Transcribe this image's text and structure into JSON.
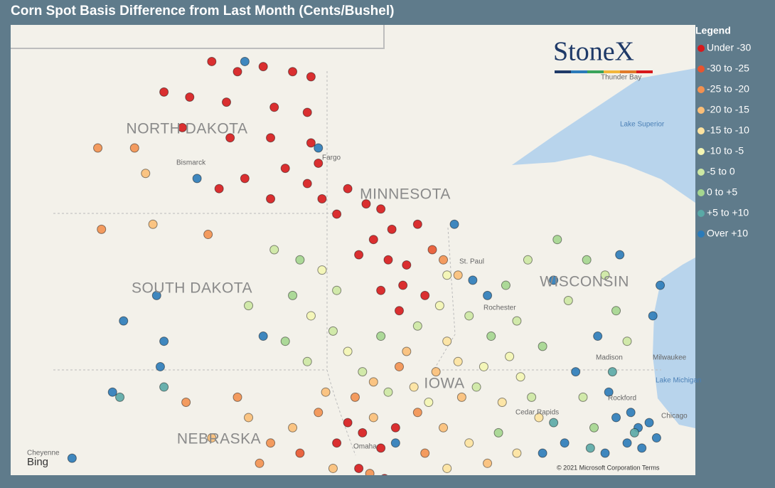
{
  "title": "Corn Spot Basis Difference from Last Month (Cents/Bushel)",
  "legend": {
    "title": "Legend",
    "items": [
      {
        "label": "Under -30",
        "color": "#d7191c"
      },
      {
        "label": "-30 to -25",
        "color": "#e8552f"
      },
      {
        "label": "-25 to -20",
        "color": "#f39150"
      },
      {
        "label": "-20 to -15",
        "color": "#fbbf78"
      },
      {
        "label": "-15 to -10",
        "color": "#fde3a0"
      },
      {
        "label": "-10 to -5",
        "color": "#f4f6b4"
      },
      {
        "label": "-5 to 0",
        "color": "#cde8a3"
      },
      {
        "label": "0 to +5",
        "color": "#a4d68f"
      },
      {
        "label": "+5 to +10",
        "color": "#5aa9a6"
      },
      {
        "label": "Over +10",
        "color": "#2b7bb9"
      }
    ]
  },
  "map": {
    "states": [
      "NORTH DAKOTA",
      "SOUTH DAKOTA",
      "MINNESOTA",
      "WISCONSIN",
      "NEBRASKA",
      "IOWA"
    ],
    "cities": [
      "Bismarck",
      "Fargo",
      "Thunder Bay",
      "St. Paul",
      "Rochester",
      "Madison",
      "Milwaukee",
      "Cedar Rapids",
      "Rockford",
      "Chicago",
      "Cheyenne",
      "Omaha"
    ],
    "water": [
      "Lake Superior",
      "Lake Michigan"
    ],
    "brand": "StoneX",
    "provider": "Bing",
    "copyright": "© 2021 Microsoft Corporation Terms",
    "points": [
      [
        -100.2,
        48.8,
        0
      ],
      [
        -99.5,
        48.6,
        0
      ],
      [
        -98.8,
        48.7,
        0
      ],
      [
        -98,
        48.6,
        0
      ],
      [
        -97.5,
        48.5,
        0
      ],
      [
        -101.5,
        48.2,
        0
      ],
      [
        -100.8,
        48.1,
        0
      ],
      [
        -99.8,
        48,
        0
      ],
      [
        -98.5,
        47.9,
        0
      ],
      [
        -97.6,
        47.8,
        0
      ],
      [
        -101,
        47.5,
        0
      ],
      [
        -99.7,
        47.3,
        0
      ],
      [
        -98.6,
        47.3,
        0
      ],
      [
        -97.5,
        47.2,
        0
      ],
      [
        -97.3,
        46.8,
        0
      ],
      [
        -98.2,
        46.7,
        0
      ],
      [
        -99.3,
        46.5,
        0
      ],
      [
        -100,
        46.3,
        0
      ],
      [
        -97.6,
        46.4,
        0
      ],
      [
        -97.2,
        46.1,
        0
      ],
      [
        -98.6,
        46.1,
        0
      ],
      [
        -96.5,
        46.3,
        0
      ],
      [
        -96,
        46,
        0
      ],
      [
        -95.6,
        45.9,
        0
      ],
      [
        -96.8,
        45.8,
        0
      ],
      [
        -95.3,
        45.5,
        0
      ],
      [
        -95.8,
        45.3,
        0
      ],
      [
        -94.6,
        45.6,
        0
      ],
      [
        -96.2,
        45,
        0
      ],
      [
        -95.4,
        44.9,
        0
      ],
      [
        -94.9,
        44.8,
        0
      ],
      [
        -95,
        44.4,
        0
      ],
      [
        -95.6,
        44.3,
        0
      ],
      [
        -94.4,
        44.2,
        0
      ],
      [
        -95.1,
        43.9,
        0
      ],
      [
        -96.5,
        41.7,
        0
      ],
      [
        -96.1,
        41.5,
        0
      ],
      [
        -95.6,
        41.2,
        0
      ],
      [
        -96.8,
        41.3,
        0
      ],
      [
        -95.2,
        41.6,
        0
      ],
      [
        -96.2,
        40.8,
        0
      ],
      [
        -95.5,
        40.6,
        0
      ],
      [
        -99.3,
        48.8,
        9
      ],
      [
        -97.3,
        47.1,
        9
      ],
      [
        -100.6,
        46.5,
        9
      ],
      [
        -101.7,
        44.2,
        9
      ],
      [
        -102.6,
        43.7,
        9
      ],
      [
        -101.5,
        43.3,
        9
      ],
      [
        -98.8,
        43.4,
        9
      ],
      [
        -101.6,
        42.8,
        9
      ],
      [
        -102.9,
        42.3,
        9
      ],
      [
        -93.6,
        45.6,
        9
      ],
      [
        -93.1,
        44.5,
        9
      ],
      [
        -92.7,
        44.2,
        9
      ],
      [
        -90.9,
        44.5,
        9
      ],
      [
        -89.1,
        45,
        9
      ],
      [
        -88,
        44.4,
        9
      ],
      [
        -88.2,
        43.8,
        9
      ],
      [
        -89.7,
        43.4,
        9
      ],
      [
        -90.3,
        42.7,
        9
      ],
      [
        -89.4,
        42.3,
        9
      ],
      [
        -88.8,
        41.9,
        9
      ],
      [
        -88.6,
        41.6,
        9
      ],
      [
        -88.3,
        41.7,
        9
      ],
      [
        -88.9,
        41.3,
        9
      ],
      [
        -89.5,
        41.1,
        9
      ],
      [
        -88.1,
        41.4,
        9
      ],
      [
        -89.2,
        41.8,
        9
      ],
      [
        -90.6,
        41.3,
        9
      ],
      [
        -91.2,
        41.1,
        9
      ],
      [
        -88.5,
        41.2,
        9
      ],
      [
        -104,
        41,
        9
      ],
      [
        -95.2,
        41.3,
        9
      ],
      [
        -101.5,
        42.4,
        8
      ],
      [
        -102.7,
        42.2,
        8
      ],
      [
        -88.7,
        41.5,
        8
      ],
      [
        -89.9,
        41.2,
        8
      ],
      [
        -90.9,
        41.7,
        8
      ],
      [
        -89.3,
        42.7,
        8
      ],
      [
        -98.5,
        45.1,
        6
      ],
      [
        -97.8,
        44.9,
        7
      ],
      [
        -97.2,
        44.7,
        5
      ],
      [
        -96.8,
        44.3,
        6
      ],
      [
        -98,
        44.2,
        7
      ],
      [
        -99.2,
        44,
        6
      ],
      [
        -97.5,
        43.8,
        5
      ],
      [
        -96.9,
        43.5,
        6
      ],
      [
        -98.2,
        43.3,
        7
      ],
      [
        -97.6,
        42.9,
        6
      ],
      [
        -96.5,
        43.1,
        5
      ],
      [
        -96.1,
        42.7,
        6
      ],
      [
        -95.6,
        43.4,
        7
      ],
      [
        -94.6,
        43.6,
        6
      ],
      [
        -94,
        44,
        5
      ],
      [
        -93.2,
        43.8,
        6
      ],
      [
        -92.6,
        43.4,
        7
      ],
      [
        -91.9,
        43.7,
        6
      ],
      [
        -91.2,
        43.2,
        7
      ],
      [
        -90.5,
        44.1,
        6
      ],
      [
        -90,
        44.9,
        7
      ],
      [
        -89.5,
        44.6,
        6
      ],
      [
        -89.2,
        43.9,
        7
      ],
      [
        -88.9,
        43.3,
        6
      ],
      [
        -93.8,
        44.6,
        5
      ],
      [
        -92.2,
        44.4,
        7
      ],
      [
        -91.6,
        44.9,
        6
      ],
      [
        -90.8,
        45.3,
        7
      ],
      [
        -90.1,
        42.2,
        6
      ],
      [
        -89.8,
        41.6,
        7
      ],
      [
        -93,
        42.4,
        6
      ],
      [
        -94.3,
        42.1,
        5
      ],
      [
        -95.4,
        42.3,
        6
      ],
      [
        -92.4,
        41.5,
        7
      ],
      [
        -91.5,
        42.2,
        6
      ],
      [
        -95.8,
        42.5,
        3
      ],
      [
        -95.1,
        42.8,
        2
      ],
      [
        -94.7,
        42.4,
        4
      ],
      [
        -94.1,
        42.7,
        3
      ],
      [
        -93.5,
        42.9,
        4
      ],
      [
        -93.4,
        42.2,
        3
      ],
      [
        -92.8,
        42.8,
        5
      ],
      [
        -92.3,
        42.1,
        4
      ],
      [
        -91.8,
        42.6,
        5
      ],
      [
        -91.3,
        41.8,
        4
      ],
      [
        -94.6,
        41.9,
        2
      ],
      [
        -93.9,
        41.6,
        3
      ],
      [
        -93.2,
        41.3,
        4
      ],
      [
        -92.7,
        40.9,
        3
      ],
      [
        -94.4,
        41.1,
        2
      ],
      [
        -95.8,
        41.8,
        3
      ],
      [
        -97.3,
        41.9,
        2
      ],
      [
        -98,
        41.6,
        3
      ],
      [
        -98.6,
        41.3,
        2
      ],
      [
        -99.2,
        41.8,
        3
      ],
      [
        -97.8,
        41.1,
        1
      ],
      [
        -98.9,
        40.9,
        2
      ],
      [
        -96.9,
        40.8,
        3
      ],
      [
        -95.9,
        40.7,
        2
      ],
      [
        -93.8,
        40.8,
        4
      ],
      [
        -91.9,
        41.1,
        4
      ],
      [
        -94.9,
        43.1,
        3
      ],
      [
        -93.8,
        43.3,
        4
      ],
      [
        -92.1,
        43,
        5
      ],
      [
        -96.3,
        42.2,
        2
      ],
      [
        -97.1,
        42.3,
        3
      ],
      [
        -99.5,
        42.2,
        2
      ],
      [
        -100.2,
        41.4,
        3
      ],
      [
        -100.9,
        42.1,
        2
      ],
      [
        -93.9,
        44.9,
        2
      ],
      [
        -94.2,
        45.1,
        1
      ],
      [
        -93.5,
        44.6,
        3
      ],
      [
        -103.3,
        47.1,
        2
      ],
      [
        -102.3,
        47.1,
        2
      ],
      [
        -102,
        46.6,
        3
      ],
      [
        -100.3,
        45.4,
        2
      ],
      [
        -101.8,
        45.6,
        3
      ],
      [
        -103.2,
        45.5,
        2
      ]
    ]
  }
}
